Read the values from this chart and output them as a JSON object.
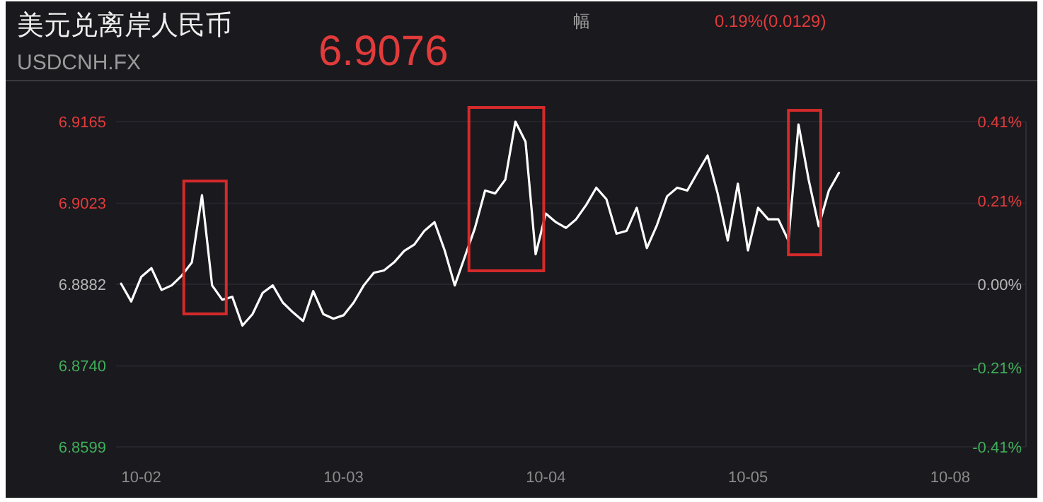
{
  "chart_data": {
    "type": "line",
    "title": "美元兑离岸人民币",
    "subtitle": "USDCNH.FX",
    "annotations": [
      "6.9076",
      "幅",
      "0.19%(0.0129)"
    ],
    "categories": [
      null,
      null,
      "10-02",
      null,
      null,
      null,
      null,
      null,
      null,
      null,
      null,
      null,
      null,
      null,
      null,
      null,
      null,
      null,
      null,
      null,
      null,
      null,
      "10-03",
      null,
      null,
      null,
      null,
      null,
      null,
      null,
      null,
      null,
      null,
      null,
      null,
      null,
      null,
      null,
      null,
      null,
      null,
      null,
      "10-04",
      null,
      null,
      null,
      null,
      null,
      null,
      null,
      null,
      null,
      null,
      null,
      null,
      null,
      null,
      null,
      null,
      null,
      null,
      null,
      "10-05",
      null,
      null,
      null,
      null,
      null,
      null,
      null,
      null,
      null,
      null,
      null,
      null,
      null,
      null,
      null,
      null,
      null,
      null,
      null,
      "10-08",
      null,
      null,
      null,
      null,
      null,
      null,
      null
    ],
    "series": [
      {
        "color": "#ffffff",
        "values": [
          6.8883,
          6.8852,
          6.8895,
          6.891,
          6.8872,
          6.888,
          6.8897,
          6.892,
          6.9037,
          6.888,
          6.8855,
          6.886,
          6.881,
          6.883,
          6.8867,
          6.888,
          6.885,
          6.8833,
          6.8818,
          6.887,
          6.883,
          6.8822,
          6.8828,
          6.885,
          6.888,
          6.8902,
          6.8906,
          6.892,
          6.894,
          6.8951,
          6.8975,
          6.899,
          6.8941,
          6.888,
          6.893,
          6.898,
          6.9045,
          6.904,
          6.9064,
          6.9165,
          6.913,
          6.8934,
          6.9005,
          6.899,
          6.898,
          6.8995,
          6.902,
          6.905,
          6.903,
          6.897,
          6.8975,
          6.9015,
          6.8945,
          6.8985,
          6.9035,
          6.905,
          6.9045,
          6.9076,
          6.9106,
          6.904,
          6.8958,
          6.9057,
          6.8941,
          6.9015,
          6.8995,
          6.8995,
          6.8958,
          6.916,
          6.9064,
          6.8983,
          6.9045,
          6.9076,
          null,
          null,
          null,
          null,
          null,
          null,
          null,
          null,
          null,
          null,
          null,
          null,
          null,
          null,
          null,
          null,
          null,
          null
        ]
      }
    ],
    "ylim": [
      6.8599,
      6.9165
    ],
    "yticks": [
      6.9165,
      6.9023,
      6.8882,
      {
        "value": 6.874,
        "label": "6.8740"
      },
      6.8599
    ],
    "y2ticks": [
      {
        "value": 0.41,
        "label": "0.41%"
      },
      {
        "value": 0.21,
        "label": "0.21%"
      },
      {
        "value": 0,
        "label": "0.00%"
      },
      {
        "value": -0.21,
        "label": "-0.21%"
      },
      {
        "value": -0.41,
        "label": "-0.41%"
      }
    ],
    "y2lim": [
      -0.41,
      0.41
    ],
    "grid": "y",
    "line_style": "solid",
    "marker": "none"
  }
}
